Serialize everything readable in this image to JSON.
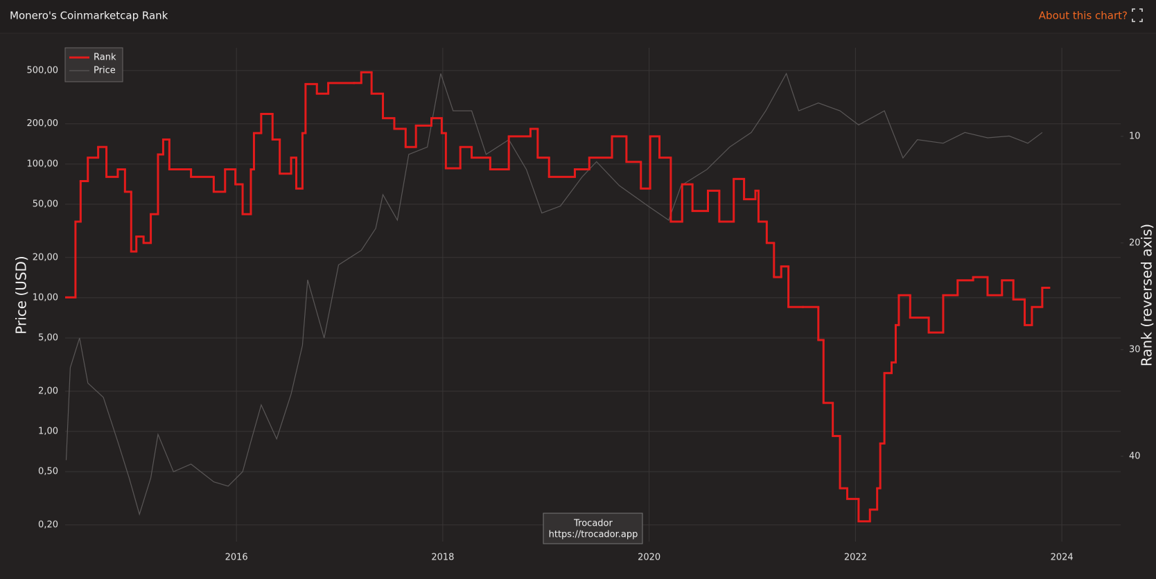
{
  "header": {
    "title": "Monero's Coinmarketcap Rank",
    "link": "About this chart?"
  },
  "chart_data": {
    "type": "line",
    "xlim": [
      2014.34,
      2024.57
    ],
    "xticks": [
      2016,
      2018,
      2020,
      2022,
      2024
    ],
    "ylim": [
      0.15,
      740
    ],
    "ylog": true,
    "ylabel": "Price (USD)",
    "yticks": [
      {
        "value": 0.2,
        "label": "0,20"
      },
      {
        "value": 0.5,
        "label": "0,50"
      },
      {
        "value": 1,
        "label": "1,00"
      },
      {
        "value": 2,
        "label": "2,00"
      },
      {
        "value": 5,
        "label": "5,00"
      },
      {
        "value": 10,
        "label": "10,00"
      },
      {
        "value": 20,
        "label": "20,00"
      },
      {
        "value": 50,
        "label": "50,00"
      },
      {
        "value": 100,
        "label": "100,00"
      },
      {
        "value": 200,
        "label": "200,00"
      },
      {
        "value": 500,
        "label": "500,00"
      }
    ],
    "y2lim": [
      1.7,
      48
    ],
    "y2reversed": true,
    "y2label": "Rank (reversed axis)",
    "y2ticks": [
      10,
      20,
      30,
      40
    ],
    "grid": true,
    "legend": "upper left",
    "annotations": [
      "Trocador",
      "https://trocador.app"
    ],
    "series": [
      {
        "name": "Rank",
        "color": "#e41b1b",
        "axis": "y2",
        "drawstyle": "steps-post",
        "x": [
          2014.35,
          2014.44,
          2014.49,
          2014.56,
          2014.66,
          2014.74,
          2014.85,
          2014.92,
          2014.98,
          2015.03,
          2015.1,
          2015.17,
          2015.24,
          2015.29,
          2015.35,
          2015.56,
          2015.78,
          2015.89,
          2015.99,
          2016.06,
          2016.14,
          2016.17,
          2016.24,
          2016.35,
          2016.42,
          2016.53,
          2016.58,
          2016.64,
          2016.67,
          2016.78,
          2016.89,
          2017.14,
          2017.21,
          2017.31,
          2017.42,
          2017.53,
          2017.64,
          2017.74,
          2017.89,
          2017.99,
          2018.03,
          2018.17,
          2018.28,
          2018.46,
          2018.64,
          2018.85,
          2018.92,
          2019.03,
          2019.28,
          2019.42,
          2019.64,
          2019.78,
          2019.92,
          2020.01,
          2020.1,
          2020.21,
          2020.32,
          2020.42,
          2020.57,
          2020.68,
          2020.82,
          2020.92,
          2021.03,
          2021.06,
          2021.14,
          2021.21,
          2021.28,
          2021.35,
          2021.49,
          2021.64,
          2021.69,
          2021.78,
          2021.85,
          2021.92,
          2022.03,
          2022.14,
          2022.21,
          2022.24,
          2022.28,
          2022.35,
          2022.39,
          2022.42,
          2022.53,
          2022.71,
          2022.85,
          2022.99,
          2023.14,
          2023.28,
          2023.42,
          2023.53,
          2023.64,
          2023.71,
          2023.81
        ],
        "values": [
          25.1,
          18,
          14.2,
          12,
          11,
          13.8,
          13.1,
          15.2,
          20.8,
          19.4,
          20,
          17.3,
          11.7,
          10.3,
          13.1,
          13.8,
          15.2,
          13.1,
          14.5,
          17.3,
          13.1,
          9.7,
          7.9,
          10.3,
          13.5,
          12,
          14.9,
          9.7,
          5.1,
          6,
          5,
          5,
          4,
          6,
          8.3,
          9.3,
          11,
          9,
          8.3,
          9.7,
          13,
          11,
          12,
          13.1,
          10,
          9.3,
          12,
          13.8,
          13.1,
          12,
          10,
          12.4,
          14.9,
          10,
          12,
          18,
          14.5,
          17,
          15.1,
          18,
          14,
          15.9,
          15.1,
          18,
          20,
          23.2,
          22.2,
          26,
          26,
          29.1,
          35,
          38.1,
          43,
          44,
          46.1,
          45,
          43,
          38.8,
          32.2,
          31.2,
          27.7,
          24.9,
          27,
          28.4,
          24.9,
          23.5,
          23.2,
          24.9,
          23.5,
          25.3,
          27.7,
          26,
          24.2
        ]
      },
      {
        "name": "Price",
        "color": "#5a5757",
        "x": [
          2014.35,
          2014.39,
          2014.48,
          2014.56,
          2014.71,
          2014.85,
          2014.96,
          2015.06,
          2015.17,
          2015.24,
          2015.39,
          2015.56,
          2015.78,
          2015.92,
          2016.06,
          2016.14,
          2016.24,
          2016.39,
          2016.53,
          2016.64,
          2016.69,
          2016.85,
          2016.99,
          2017.21,
          2017.35,
          2017.42,
          2017.56,
          2017.67,
          2017.85,
          2017.98,
          2018.1,
          2018.28,
          2018.42,
          2018.64,
          2018.81,
          2018.96,
          2019.14,
          2019.35,
          2019.49,
          2019.71,
          2019.99,
          2020.19,
          2020.31,
          2020.56,
          2020.78,
          2020.99,
          2021.13,
          2021.33,
          2021.45,
          2021.64,
          2021.85,
          2022.03,
          2022.28,
          2022.46,
          2022.6,
          2022.85,
          2023.06,
          2023.28,
          2023.49,
          2023.67,
          2023.81
        ],
        "values": [
          0.61,
          3,
          5,
          2.3,
          1.8,
          0.84,
          0.45,
          0.24,
          0.45,
          0.95,
          0.5,
          0.57,
          0.42,
          0.39,
          0.5,
          0.84,
          1.58,
          0.88,
          1.9,
          4.4,
          13.6,
          5,
          17.6,
          22.6,
          33,
          59,
          38,
          118,
          134,
          475,
          250,
          250,
          118,
          152,
          91,
          43,
          48.5,
          80,
          104,
          69,
          48.5,
          38,
          69,
          91,
          134,
          172,
          250,
          475,
          250,
          286,
          250,
          196,
          250,
          111,
          152,
          143,
          172,
          157,
          162,
          143,
          172
        ]
      }
    ]
  }
}
